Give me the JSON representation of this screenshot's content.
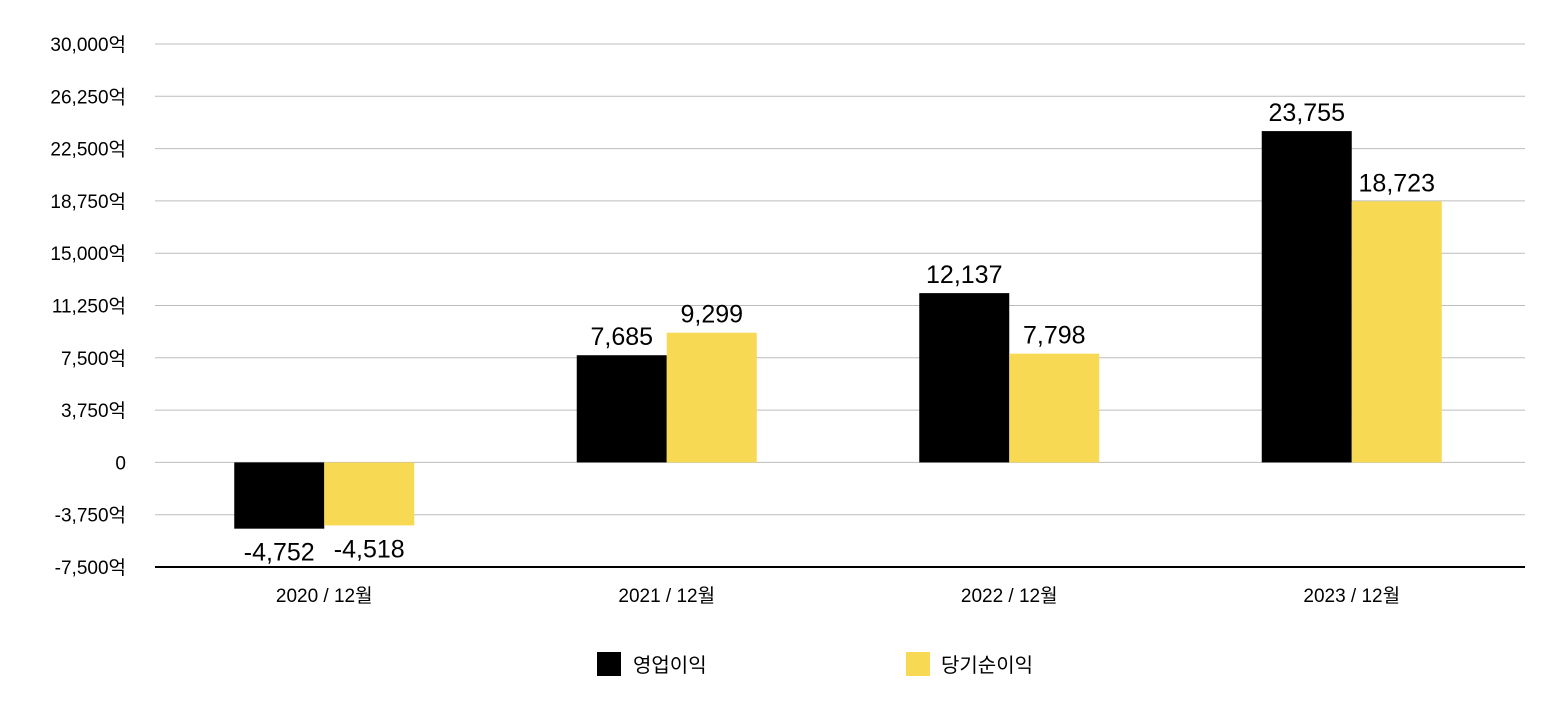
{
  "chart_data": {
    "type": "bar",
    "categories": [
      "2020 / 12월",
      "2021 / 12월",
      "2022 / 12월",
      "2023 / 12월"
    ],
    "series": [
      {
        "name": "영업이익",
        "values": [
          -4752,
          7685,
          12137,
          23755
        ],
        "color": "#000000",
        "labels": [
          "-4,752",
          "7,685",
          "12,137",
          "23,755"
        ]
      },
      {
        "name": "당기순이익",
        "values": [
          -4518,
          9299,
          7798,
          18723
        ],
        "color": "#F7D954",
        "labels": [
          "-4,518",
          "9,299",
          "7,798",
          "18,723"
        ]
      }
    ],
    "yticks": [
      30000,
      26250,
      22500,
      18750,
      15000,
      11250,
      7500,
      3750,
      0,
      -3750,
      -7500
    ],
    "ytick_labels": [
      "30,000억",
      "26,250억",
      "22,500억",
      "18,750억",
      "15,000억",
      "11,250억",
      "7,500억",
      "3,750억",
      "0",
      "-3,750억",
      "-7,500억"
    ],
    "ylim": [
      -7500,
      30000
    ],
    "grid": true,
    "legend_position": "bottom-center"
  }
}
